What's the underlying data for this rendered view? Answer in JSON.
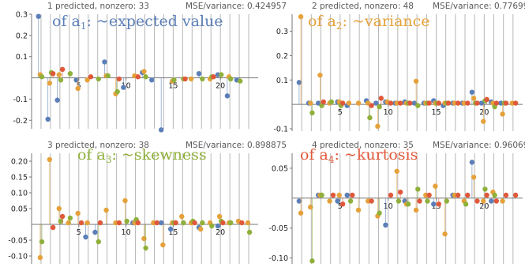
{
  "colors": {
    "blue": "#5b7fb8",
    "orange": "#e5a13a",
    "green": "#8fb03a",
    "red": "#e0583a",
    "grid": "#b7b7b7",
    "axis": "#777777"
  },
  "chart_data": [
    {
      "type": "scatter",
      "header_left": "1 predicted, nonzero: 33",
      "header_right": "MSE/variance: 0.424957",
      "annotation": {
        "prefix": "of a",
        "sub": "1",
        "suffix": ": ~expected value",
        "color": "#5b7fb8"
      },
      "xlim": [
        0,
        24
      ],
      "ylim": [
        -0.24,
        0.3
      ],
      "y_ticks": [
        -0.2,
        -0.1,
        0.1,
        0.2,
        0.3
      ],
      "y_tick_labels": [
        "-0.2",
        "-0.1",
        "0.1",
        "0.2",
        "0.3"
      ],
      "x_ticks": [
        5,
        10,
        15,
        20
      ],
      "x_tick_labels": [
        "5",
        "10",
        "15",
        "20"
      ],
      "series": [
        {
          "color": "blue",
          "x": [
            1,
            2,
            3,
            5,
            8,
            10,
            12,
            13,
            14,
            18,
            20,
            21,
            22
          ],
          "y": [
            0.29,
            -0.195,
            -0.105,
            -0.01,
            0.075,
            -0.045,
            0.025,
            -0.01,
            -0.245,
            0.02,
            0.015,
            -0.085,
            -0.01
          ]
        },
        {
          "color": "orange",
          "x": [
            1,
            2,
            3,
            5,
            6,
            8,
            9,
            11,
            12,
            15,
            17,
            19,
            21
          ],
          "y": [
            0.015,
            -0.025,
            0.015,
            -0.05,
            -0.01,
            0.01,
            -0.075,
            0.01,
            0.03,
            -0.015,
            -0.005,
            -0.005,
            0.005
          ]
        },
        {
          "color": "green",
          "x": [
            1,
            2,
            3,
            4,
            7,
            8,
            9,
            12,
            15,
            16,
            18,
            19,
            20,
            21,
            22
          ],
          "y": [
            0.005,
            0.025,
            -0.01,
            0.02,
            -0.005,
            0.01,
            -0.065,
            0.005,
            -0.01,
            -0.005,
            -0.005,
            0.005,
            0.015,
            -0.005,
            -0.015
          ]
        },
        {
          "color": "red",
          "x": [
            2,
            3,
            6,
            9,
            11,
            16,
            19
          ],
          "y": [
            0.02,
            0.04,
            0.005,
            -0.005,
            0.005,
            -0.005,
            0.005
          ]
        }
      ]
    },
    {
      "type": "scatter",
      "header_left": "2 predicted, nonzero: 48",
      "header_right": "MSE/variance: 0.77699",
      "annotation": {
        "prefix": "of a",
        "sub": "2",
        "suffix": ": ~variance",
        "color": "#e5a13a"
      },
      "xlim": [
        0,
        24
      ],
      "ylim": [
        -0.11,
        0.37
      ],
      "y_ticks": [
        -0.1,
        0.1,
        0.2,
        0.3
      ],
      "y_tick_labels": [
        "-0.1",
        "0.1",
        "0.2",
        "0.3"
      ],
      "x_ticks": [
        5,
        10,
        15,
        20
      ],
      "x_tick_labels": [
        "5",
        "10",
        "15",
        "20"
      ],
      "series": [
        {
          "color": "blue",
          "x": [
            1,
            2,
            3,
            5,
            6,
            8,
            9,
            10,
            11,
            12,
            13,
            14,
            15,
            16,
            17,
            18,
            19,
            20,
            21,
            22
          ],
          "y": [
            0.09,
            0.005,
            0.005,
            0.01,
            -0.005,
            0.015,
            0.005,
            0.01,
            0.005,
            0.01,
            0.005,
            0.005,
            0.015,
            -0.005,
            0.005,
            0.005,
            0.05,
            0.005,
            0.01,
            0.005
          ]
        },
        {
          "color": "orange",
          "x": [
            1,
            2,
            3,
            4,
            5,
            6,
            7,
            8,
            9,
            10,
            11,
            12,
            13,
            14,
            15,
            16,
            17,
            18,
            19,
            20,
            21,
            22,
            23
          ],
          "y": [
            0.36,
            0.005,
            0.12,
            0.005,
            0.01,
            0.005,
            0.005,
            0.005,
            -0.09,
            0.01,
            0.005,
            0.005,
            0.095,
            0.005,
            0.005,
            0.005,
            0.005,
            0.005,
            0.025,
            -0.07,
            0.005,
            -0.04,
            0.005
          ]
        },
        {
          "color": "green",
          "x": [
            2,
            3,
            4,
            5,
            8,
            9,
            12,
            13,
            14,
            15,
            16,
            19,
            20,
            21,
            22
          ],
          "y": [
            -0.035,
            -0.005,
            0.01,
            -0.005,
            -0.055,
            -0.01,
            0.005,
            -0.005,
            0.005,
            0.005,
            0.005,
            0.005,
            0.015,
            -0.01,
            0.005
          ]
        },
        {
          "color": "red",
          "x": [
            3,
            5,
            8,
            9,
            10,
            11,
            12,
            14,
            15,
            16,
            17,
            18,
            19,
            20,
            21,
            22,
            23
          ],
          "y": [
            0.01,
            0.005,
            -0.005,
            0.025,
            0.005,
            0.005,
            0.005,
            0.005,
            0.005,
            0.005,
            0.005,
            0.005,
            0.005,
            0.02,
            0.005,
            0.005,
            0.005
          ]
        }
      ]
    },
    {
      "type": "scatter",
      "header_left": "3 predicted, nonzero: 38",
      "header_right": "MSE/variance: 0.898875",
      "annotation": {
        "prefix": "of a",
        "sub": "3",
        "suffix": ": ~skewness",
        "color": "#8fb03a"
      },
      "xlim": [
        0,
        24
      ],
      "ylim": [
        -0.125,
        0.225
      ],
      "y_ticks": [
        -0.1,
        -0.05,
        0.05,
        0.1,
        0.15,
        0.2
      ],
      "y_tick_labels": [
        "-0.10",
        "-0.05",
        "0.05",
        "0.10",
        "0.15",
        "0.20"
      ],
      "x_ticks": [
        5,
        10,
        15,
        20
      ],
      "x_tick_labels": [
        "5",
        "10",
        "15",
        "20"
      ],
      "series": [
        {
          "color": "blue",
          "x": [
            6,
            7,
            11,
            14,
            15,
            18,
            20
          ],
          "y": [
            -0.04,
            -0.025,
            0.005,
            0.005,
            -0.015,
            -0.01,
            -0.005
          ]
        },
        {
          "color": "orange",
          "x": [
            1,
            2,
            3,
            4,
            5,
            6,
            8,
            9,
            10,
            11,
            12,
            13,
            14,
            15,
            16,
            17,
            18,
            19,
            20,
            21,
            22,
            23
          ],
          "y": [
            -0.105,
            0.205,
            0.05,
            0.005,
            0.035,
            0.005,
            0.045,
            0.005,
            0.075,
            0.005,
            -0.045,
            0.005,
            -0.065,
            0.005,
            0.025,
            0.005,
            -0.015,
            0.005,
            0.025,
            0.005,
            0.01,
            0.005
          ]
        },
        {
          "color": "green",
          "x": [
            1,
            3,
            4,
            7,
            10,
            11,
            12,
            15,
            16,
            17,
            18,
            19,
            20,
            21,
            23
          ],
          "y": [
            -0.055,
            0.01,
            0.02,
            -0.055,
            0.01,
            0.015,
            -0.075,
            0.005,
            0.005,
            0.01,
            0.005,
            -0.005,
            0.01,
            0.005,
            -0.025
          ]
        },
        {
          "color": "red",
          "x": [
            2,
            3,
            5,
            7,
            9,
            11,
            13,
            15,
            17,
            20,
            22
          ],
          "y": [
            -0.01,
            0.025,
            0.005,
            0.005,
            0.005,
            0.005,
            0.005,
            0.005,
            0.005,
            0.005,
            0.005
          ]
        }
      ]
    },
    {
      "type": "scatter",
      "header_left": "4 predicted, nonzero: 35",
      "header_right": "MSE/variance: 0.96069",
      "annotation": {
        "prefix": "of a",
        "sub": "4",
        "suffix": ": ~kurtosis",
        "color": "#e0583a"
      },
      "xlim": [
        0,
        24
      ],
      "ylim": [
        -0.11,
        0.075
      ],
      "y_ticks": [
        -0.1,
        -0.05,
        0.05
      ],
      "y_tick_labels": [
        "-0.10",
        "-0.05",
        "0.05"
      ],
      "x_ticks": [
        5,
        10,
        15,
        20
      ],
      "x_tick_labels": [
        "5",
        "10",
        "15",
        "20"
      ],
      "series": [
        {
          "color": "blue",
          "x": [
            1,
            3,
            5,
            6,
            10,
            12,
            15,
            17,
            19,
            21
          ],
          "y": [
            -0.005,
            0.005,
            -0.005,
            0.005,
            -0.045,
            -0.005,
            -0.01,
            0.005,
            0.06,
            -0.005
          ]
        },
        {
          "color": "orange",
          "x": [
            1,
            2,
            3,
            4,
            5,
            7,
            8,
            9,
            11,
            12,
            13,
            14,
            15,
            16,
            17,
            18,
            19,
            20,
            21,
            22
          ],
          "y": [
            -0.025,
            -0.015,
            0.005,
            -0.005,
            0.005,
            -0.02,
            -0.005,
            -0.03,
            0.045,
            -0.01,
            -0.02,
            0.005,
            0.02,
            -0.06,
            0.005,
            -0.005,
            0.035,
            -0.005,
            0.01,
            -0.005
          ]
        },
        {
          "color": "green",
          "x": [
            2,
            3,
            6,
            9,
            11,
            12,
            13,
            14,
            16,
            18,
            20,
            21
          ],
          "y": [
            -0.105,
            0.005,
            -0.005,
            -0.025,
            -0.005,
            -0.01,
            0.015,
            -0.005,
            -0.005,
            -0.01,
            0.015,
            0.005
          ]
        },
        {
          "color": "red",
          "x": [
            4,
            5,
            6,
            8,
            10,
            11,
            13,
            14,
            15,
            17,
            18,
            19,
            20,
            21,
            22,
            23
          ],
          "y": [
            0.005,
            -0.01,
            0.005,
            -0.005,
            0.005,
            0.01,
            -0.005,
            0.005,
            -0.01,
            0.005,
            0.005,
            -0.005,
            0.005,
            -0.005,
            0.005,
            0.005
          ]
        }
      ]
    }
  ]
}
